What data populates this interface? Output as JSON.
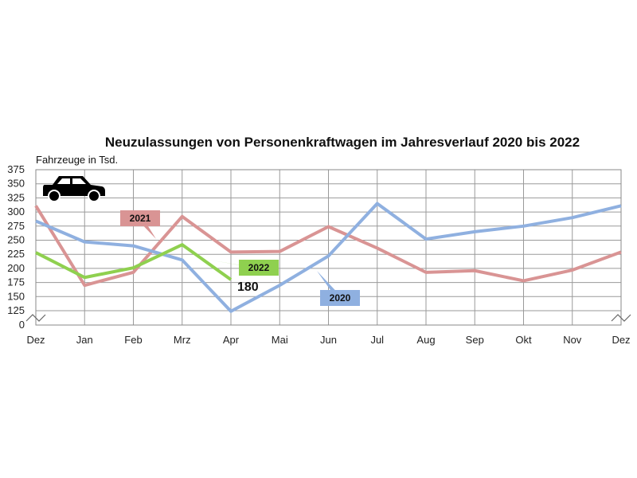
{
  "chart_data": {
    "type": "line",
    "title": "Neuzulassungen von Personenkraftwagen im Jahresverlauf 2020 bis 2022",
    "ylabel": "Fahrzeuge in Tsd.",
    "xlabel": "",
    "categories": [
      "Dez",
      "Jan",
      "Feb",
      "Mrz",
      "Apr",
      "Mai",
      "Jun",
      "Jul",
      "Aug",
      "Sep",
      "Okt",
      "Nov",
      "Dez"
    ],
    "yticks": [
      0,
      125,
      150,
      175,
      200,
      225,
      250,
      275,
      300,
      325,
      350,
      375
    ],
    "ylim": [
      0,
      375
    ],
    "axis_break": true,
    "grid": true,
    "series": [
      {
        "name": "2020",
        "color": "#8fb0e0",
        "values": [
          284,
          247,
          240,
          215,
          120,
          170,
          222,
          315,
          252,
          265,
          275,
          290,
          311
        ]
      },
      {
        "name": "2021",
        "color": "#d99494",
        "values": [
          311,
          170,
          193,
          292,
          229,
          230,
          274,
          236,
          193,
          196,
          178,
          197,
          229
        ]
      },
      {
        "name": "2022",
        "color": "#8fd04f",
        "values": [
          228,
          184,
          201,
          242,
          180,
          null,
          null,
          null,
          null,
          null,
          null,
          null,
          null
        ]
      }
    ],
    "annotation": {
      "text": "180",
      "series": "2022",
      "category": "Apr"
    },
    "icon": "car-icon"
  }
}
